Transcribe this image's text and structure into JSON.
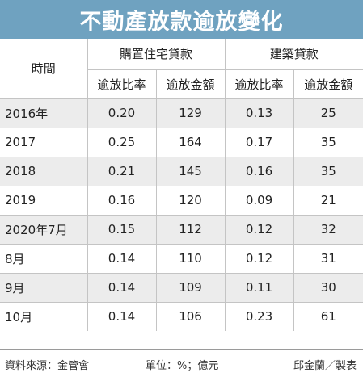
{
  "title": "不動產放款逾放變化",
  "header": {
    "period": "時間",
    "group1": "購置住宅貸款",
    "group2": "建築貸款",
    "sub": [
      "逾放比率",
      "逾放金額",
      "逾放比率",
      "逾放金額"
    ]
  },
  "rows": [
    {
      "label": "2016年",
      "values": [
        "0.20",
        "129",
        "0.13",
        "25"
      ]
    },
    {
      "label": "2017",
      "values": [
        "0.25",
        "164",
        "0.17",
        "35"
      ]
    },
    {
      "label": "2018",
      "values": [
        "0.21",
        "145",
        "0.16",
        "35"
      ]
    },
    {
      "label": "2019",
      "values": [
        "0.16",
        "120",
        "0.09",
        "21"
      ]
    },
    {
      "label": "2020年7月",
      "values": [
        "0.15",
        "112",
        "0.12",
        "32"
      ]
    },
    {
      "label": "8月",
      "values": [
        "0.14",
        "110",
        "0.12",
        "31"
      ]
    },
    {
      "label": "9月",
      "values": [
        "0.14",
        "109",
        "0.11",
        "30"
      ]
    },
    {
      "label": "10月",
      "values": [
        "0.14",
        "106",
        "0.23",
        "61"
      ]
    }
  ],
  "footer": {
    "source": "資料來源：金管會",
    "unit": "單位：%；億元",
    "maker": "邱金蘭／製表"
  },
  "colors": {
    "title_bg": "#6fa2c0",
    "row_shade": "#ececec"
  }
}
